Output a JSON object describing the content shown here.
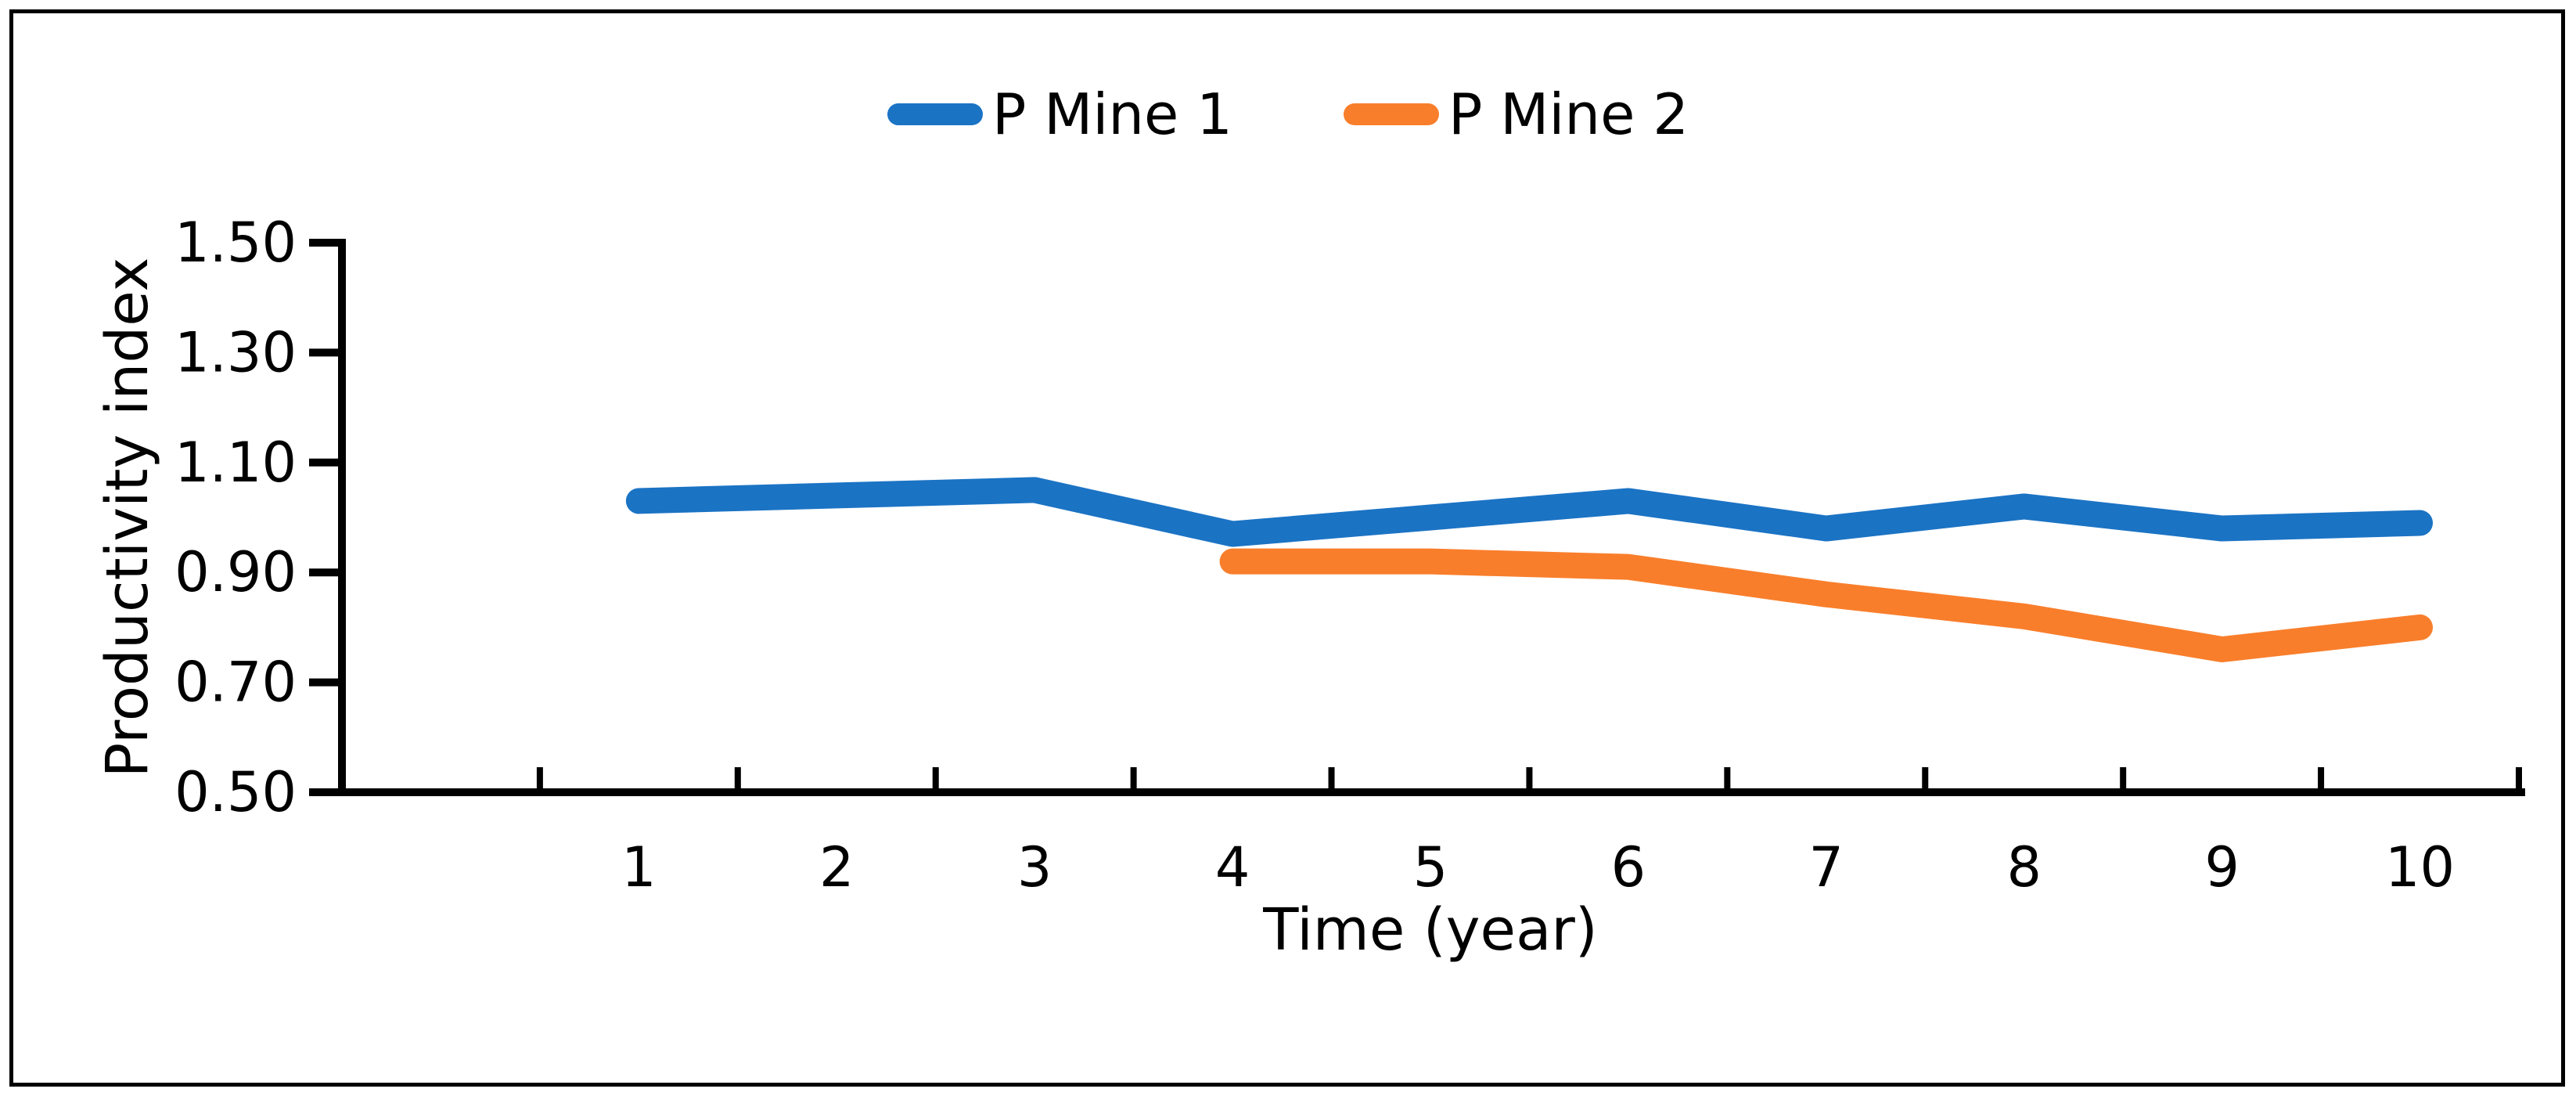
{
  "figure": {
    "background": "#ffffff",
    "border_color": "#000000",
    "text_color": "#000000"
  },
  "chart_data": {
    "type": "line",
    "title": "",
    "xlabel": "Time (year)",
    "ylabel": "Productivity index",
    "categories": [
      "1",
      "2",
      "3",
      "4",
      "5",
      "6",
      "7",
      "8",
      "9",
      "10"
    ],
    "series": [
      {
        "name": "P Mine 1",
        "color": "#1B73C4",
        "start_category_index": 0,
        "values": [
          1.03,
          1.04,
          1.05,
          0.97,
          1.0,
          1.03,
          0.98,
          1.02,
          0.98,
          0.99
        ]
      },
      {
        "name": "P Mine 2",
        "color": "#F97E2B",
        "start_category_index": 3,
        "values": [
          0.92,
          0.92,
          0.91,
          0.86,
          0.82,
          0.76,
          0.8
        ]
      }
    ],
    "y_axis": {
      "min": 0.5,
      "max": 1.5,
      "tick_step": 0.2,
      "tick_labels": [
        "0.50",
        "0.70",
        "0.90",
        "1.10",
        "1.30",
        "1.50"
      ]
    },
    "legend_position": "top-center",
    "grid": false
  }
}
